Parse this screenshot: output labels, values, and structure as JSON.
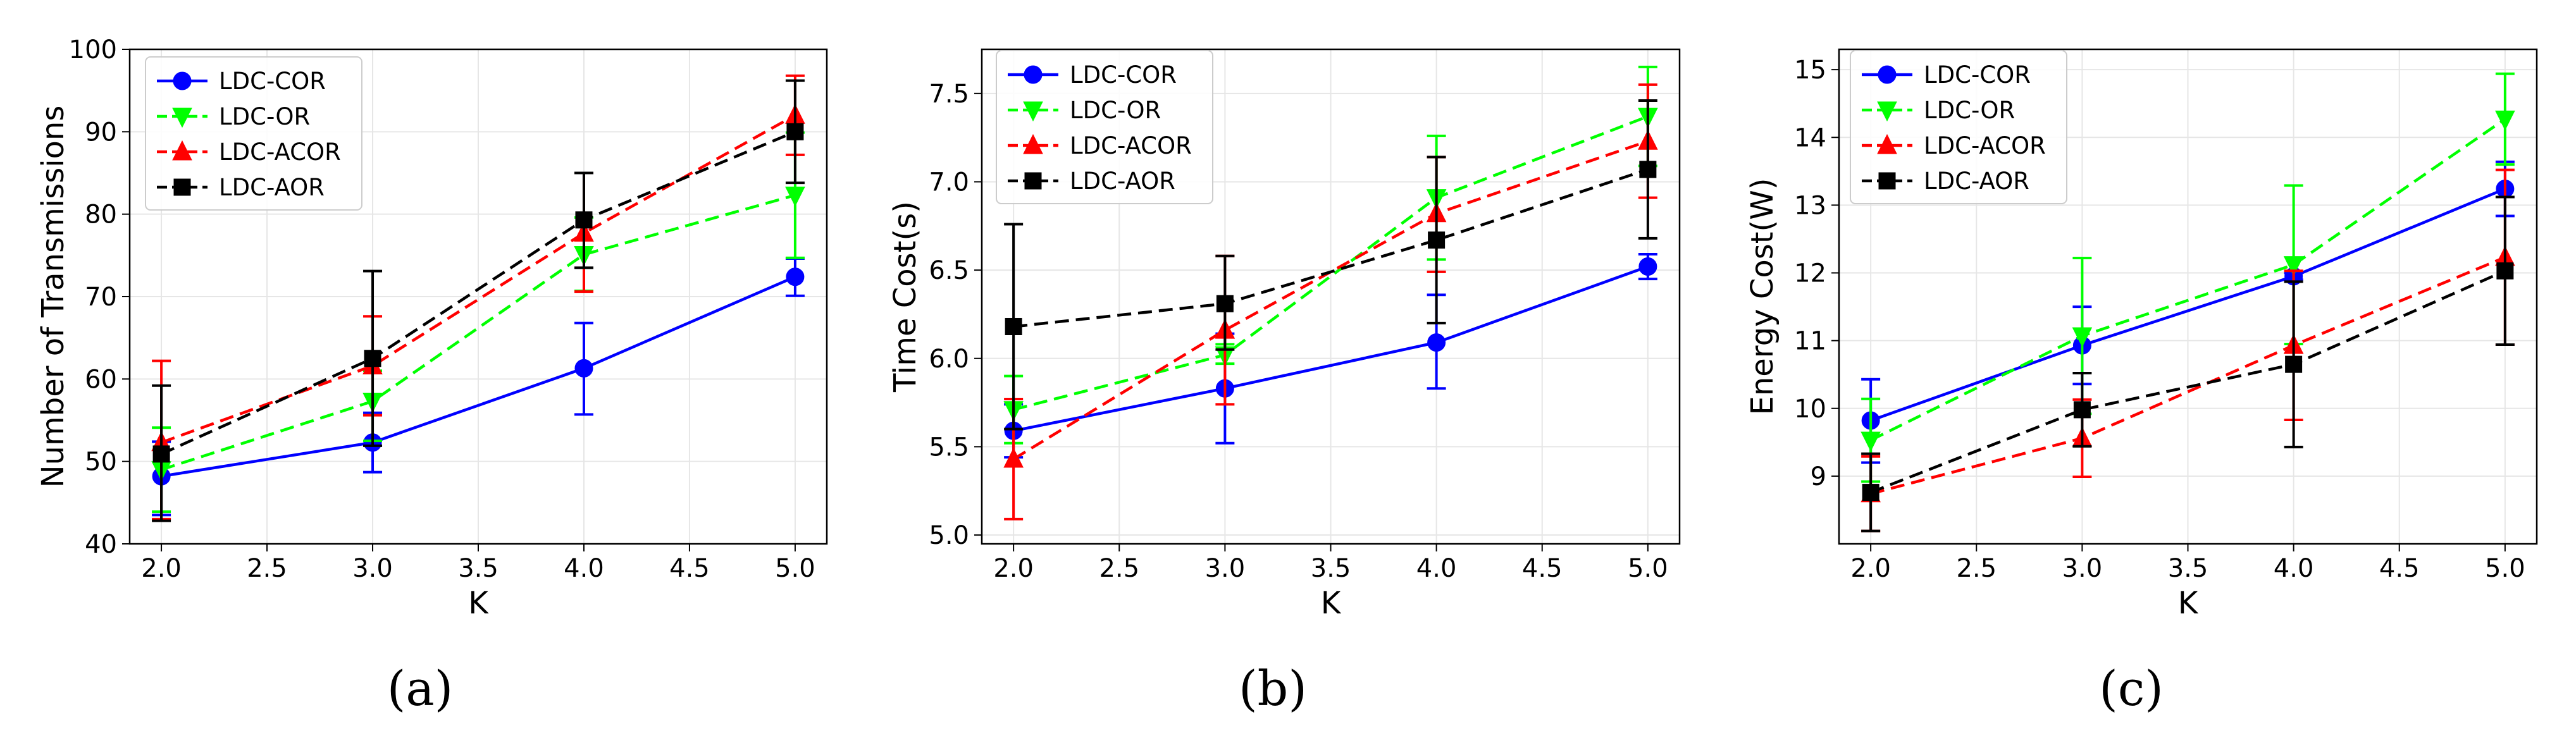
{
  "chart_data": [
    {
      "type": "line",
      "panel": "(a)",
      "title": "",
      "xlabel": "K",
      "ylabel": "Number of Transmissions",
      "x": [
        2.0,
        3.0,
        4.0,
        5.0
      ],
      "xlim": [
        1.85,
        5.15
      ],
      "ylim": [
        40,
        100
      ],
      "xticks": [
        "2.0",
        "2.5",
        "3.0",
        "3.5",
        "4.0",
        "4.5",
        "5.0"
      ],
      "yticks": [
        "40",
        "50",
        "60",
        "70",
        "80",
        "90",
        "100"
      ],
      "grid": true,
      "legend_position": "top-left",
      "series": [
        {
          "name": "LDC-COR",
          "color": "#0000ff",
          "dash": "solid",
          "marker": "circle",
          "values": [
            48.2,
            52.3,
            61.3,
            72.4
          ],
          "err_low": [
            43.5,
            48.7,
            55.7,
            70.1
          ],
          "err_high": [
            52.4,
            55.9,
            66.8,
            74.6
          ]
        },
        {
          "name": "LDC-OR",
          "color": "#00ff00",
          "dash": "dashed",
          "marker": "triangle-down",
          "values": [
            49.0,
            57.3,
            75.1,
            82.3
          ],
          "err_low": [
            43.9,
            52.5,
            70.7,
            74.7
          ],
          "err_high": [
            54.1,
            61.0,
            79.6,
            89.9
          ]
        },
        {
          "name": "LDC-ACOR",
          "color": "#ff0000",
          "dash": "dashed",
          "marker": "triangle-up",
          "values": [
            52.3,
            61.6,
            77.7,
            92.0
          ],
          "err_low": [
            43.0,
            55.6,
            70.6,
            87.2
          ],
          "err_high": [
            62.2,
            67.6,
            85.0,
            96.8
          ]
        },
        {
          "name": "LDC-AOR",
          "color": "#000000",
          "dash": "dashed",
          "marker": "square",
          "values": [
            50.9,
            62.5,
            79.3,
            90.0
          ],
          "err_low": [
            42.8,
            51.9,
            73.5,
            83.8
          ],
          "err_high": [
            59.2,
            73.1,
            85.0,
            96.2
          ]
        }
      ]
    },
    {
      "type": "line",
      "panel": "(b)",
      "title": "",
      "xlabel": "K",
      "ylabel": "Time Cost(s)",
      "x": [
        2.0,
        3.0,
        4.0,
        5.0
      ],
      "xlim": [
        1.85,
        5.15
      ],
      "ylim": [
        4.95,
        7.75
      ],
      "xticks": [
        "2.0",
        "2.5",
        "3.0",
        "3.5",
        "4.0",
        "4.5",
        "5.0"
      ],
      "yticks": [
        "5.0",
        "5.5",
        "6.0",
        "6.5",
        "7.0",
        "7.5"
      ],
      "grid": true,
      "legend_position": "top-left",
      "series": [
        {
          "name": "LDC-COR",
          "color": "#0000ff",
          "dash": "solid",
          "marker": "circle",
          "values": [
            5.59,
            5.83,
            6.09,
            6.52
          ],
          "err_low": [
            5.44,
            5.52,
            5.83,
            6.45
          ],
          "err_high": [
            5.74,
            6.14,
            6.36,
            6.59
          ]
        },
        {
          "name": "LDC-OR",
          "color": "#00ff00",
          "dash": "dashed",
          "marker": "triangle-down",
          "values": [
            5.71,
            6.02,
            6.91,
            7.37
          ],
          "err_low": [
            5.52,
            5.97,
            6.56,
            7.09
          ],
          "err_high": [
            5.9,
            6.08,
            7.26,
            7.65
          ]
        },
        {
          "name": "LDC-ACOR",
          "color": "#ff0000",
          "dash": "dashed",
          "marker": "triangle-up",
          "values": [
            5.43,
            6.16,
            6.82,
            7.23
          ],
          "err_low": [
            5.09,
            5.74,
            6.49,
            6.91
          ],
          "err_high": [
            5.77,
            6.58,
            7.14,
            7.55
          ]
        },
        {
          "name": "LDC-AOR",
          "color": "#000000",
          "dash": "dashed",
          "marker": "square",
          "values": [
            6.18,
            6.31,
            6.67,
            7.07
          ],
          "err_low": [
            5.6,
            6.05,
            6.2,
            6.68
          ],
          "err_high": [
            6.76,
            6.58,
            7.14,
            7.46
          ]
        }
      ]
    },
    {
      "type": "line",
      "panel": "(c)",
      "title": "",
      "xlabel": "K",
      "ylabel": "Energy Cost(W)",
      "x": [
        2.0,
        3.0,
        4.0,
        5.0
      ],
      "xlim": [
        1.85,
        5.15
      ],
      "ylim": [
        8.0,
        15.3
      ],
      "xticks": [
        "2.0",
        "2.5",
        "3.0",
        "3.5",
        "4.0",
        "4.5",
        "5.0"
      ],
      "yticks": [
        "9",
        "10",
        "11",
        "12",
        "13",
        "14",
        "15"
      ],
      "grid": true,
      "legend_position": "top-left",
      "series": [
        {
          "name": "LDC-COR",
          "color": "#0000ff",
          "dash": "solid",
          "marker": "circle",
          "values": [
            9.82,
            10.93,
            11.95,
            13.24
          ],
          "err_low": [
            9.2,
            10.36,
            11.9,
            12.84
          ],
          "err_high": [
            10.43,
            11.5,
            12.0,
            13.64
          ]
        },
        {
          "name": "LDC-OR",
          "color": "#00ff00",
          "dash": "dashed",
          "marker": "triangle-down",
          "values": [
            9.53,
            11.07,
            12.12,
            14.27
          ],
          "err_low": [
            8.92,
            9.92,
            10.95,
            13.6
          ],
          "err_high": [
            10.14,
            12.22,
            13.29,
            14.94
          ]
        },
        {
          "name": "LDC-ACOR",
          "color": "#ff0000",
          "dash": "dashed",
          "marker": "triangle-up",
          "values": [
            8.74,
            9.56,
            10.93,
            12.23
          ],
          "err_low": [
            8.19,
            8.99,
            9.83,
            10.94
          ],
          "err_high": [
            9.29,
            10.13,
            12.03,
            13.52
          ]
        },
        {
          "name": "LDC-AOR",
          "color": "#000000",
          "dash": "dashed",
          "marker": "square",
          "values": [
            8.76,
            9.98,
            10.65,
            12.03
          ],
          "err_low": [
            8.19,
            9.44,
            9.43,
            10.94
          ],
          "err_high": [
            9.33,
            10.52,
            11.87,
            13.12
          ]
        }
      ]
    }
  ],
  "captions": [
    "(a)",
    "(b)",
    "(c)"
  ]
}
